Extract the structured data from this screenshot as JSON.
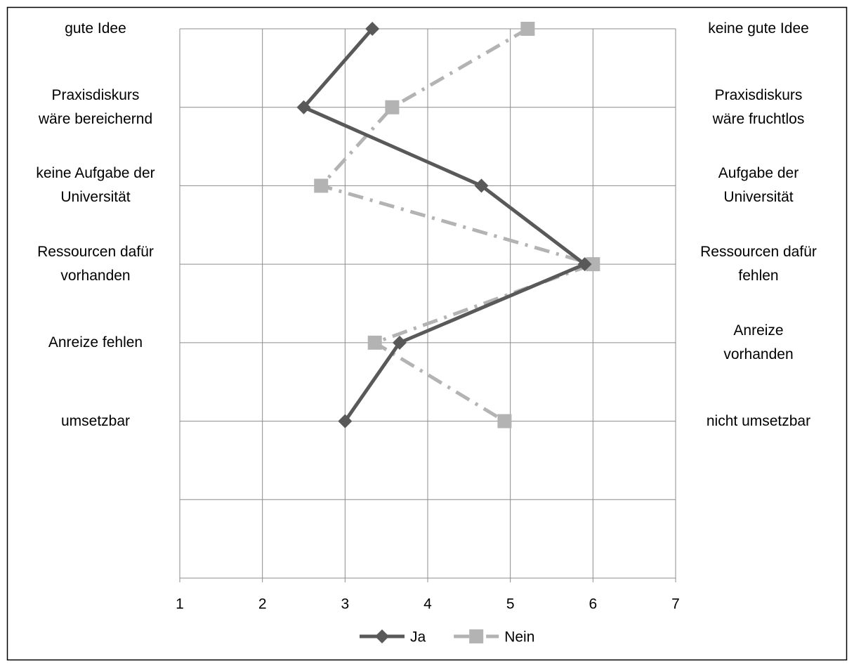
{
  "chart_data": {
    "type": "line",
    "left_labels": [
      "gute Idee",
      "Praxisdiskurs\nwäre bereichernd",
      "keine Aufgabe der\nUniversität",
      "Ressourcen dafür\nvorhanden",
      "Anreize fehlen",
      "umsetzbar"
    ],
    "right_labels": [
      "keine gute Idee",
      "Praxisdiskurs\nwäre fruchtlos",
      "Aufgabe der\nUniversität",
      "Ressourcen dafür\nfehlen",
      "Anreize\nvorhanden",
      "nicht umsetzbar"
    ],
    "series": [
      {
        "name": "Ja",
        "color": "#595959",
        "marker": "diamond",
        "dash": "solid",
        "values": [
          3.33,
          2.5,
          4.65,
          5.9,
          3.66,
          3.0
        ]
      },
      {
        "name": "Nein",
        "color": "#b3b3b3",
        "marker": "square",
        "dash": "dashdot",
        "values": [
          5.21,
          3.57,
          2.71,
          6.0,
          3.36,
          4.93
        ]
      }
    ],
    "xlim": [
      1,
      7
    ],
    "xticks": [
      1,
      2,
      3,
      4,
      5,
      6,
      7
    ],
    "grid": true,
    "legend": "bottom"
  }
}
